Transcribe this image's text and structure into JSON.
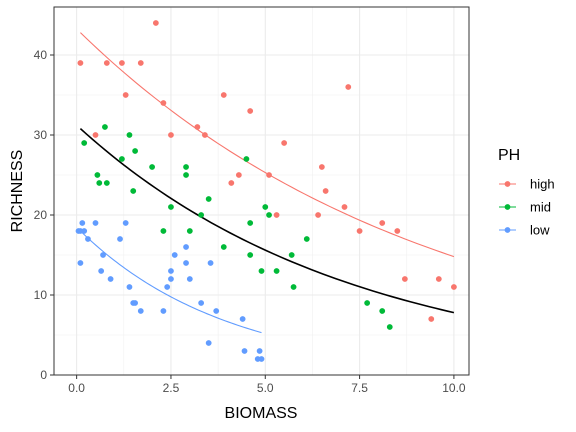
{
  "chart_data": {
    "type": "scatter",
    "xlabel": "BIOMASS",
    "ylabel": "RICHNESS",
    "xlim": [
      -0.6,
      10.4
    ],
    "ylim": [
      0,
      46
    ],
    "xticks": [
      0,
      2.5,
      5,
      7.5,
      10
    ],
    "xtick_labels": [
      "0.0",
      "2.5",
      "5.0",
      "7.5",
      "10.0"
    ],
    "yticks": [
      0,
      10,
      20,
      30,
      40
    ],
    "ytick_labels": [
      "0",
      "10",
      "20",
      "30",
      "40"
    ],
    "grid": true,
    "legend": {
      "title": "PH",
      "position": "right",
      "entries": [
        "high",
        "mid",
        "low"
      ]
    },
    "series": [
      {
        "name": "high",
        "color": "#F8766D",
        "points": [
          [
            0.1,
            39
          ],
          [
            0.5,
            30
          ],
          [
            0.8,
            39
          ],
          [
            1.2,
            39
          ],
          [
            1.3,
            35
          ],
          [
            1.7,
            39
          ],
          [
            2.1,
            44
          ],
          [
            2.3,
            34
          ],
          [
            2.5,
            30
          ],
          [
            3.2,
            31
          ],
          [
            3.4,
            30
          ],
          [
            3.9,
            35
          ],
          [
            4.1,
            24
          ],
          [
            4.3,
            25
          ],
          [
            4.6,
            33
          ],
          [
            5.1,
            25
          ],
          [
            5.3,
            20
          ],
          [
            5.5,
            29
          ],
          [
            6.4,
            20
          ],
          [
            6.5,
            26
          ],
          [
            6.6,
            23
          ],
          [
            7.1,
            21
          ],
          [
            7.2,
            36
          ],
          [
            7.5,
            18
          ],
          [
            8.1,
            19
          ],
          [
            8.5,
            18
          ],
          [
            8.7,
            12
          ],
          [
            9.4,
            7
          ],
          [
            9.6,
            12
          ],
          [
            10.0,
            11
          ]
        ],
        "fit": {
          "x_range": [
            0.1,
            10.0
          ],
          "y_start": 42.8,
          "y_end": 14.8
        }
      },
      {
        "name": "mid",
        "color": "#00BA38",
        "points": [
          [
            0.2,
            29
          ],
          [
            0.55,
            25
          ],
          [
            0.6,
            24
          ],
          [
            0.75,
            31
          ],
          [
            0.8,
            24
          ],
          [
            1.2,
            27
          ],
          [
            1.4,
            30
          ],
          [
            1.5,
            23
          ],
          [
            1.55,
            28
          ],
          [
            2.0,
            26
          ],
          [
            2.3,
            18
          ],
          [
            2.5,
            21
          ],
          [
            2.9,
            26
          ],
          [
            2.9,
            25
          ],
          [
            3.0,
            18
          ],
          [
            3.3,
            20
          ],
          [
            3.5,
            22
          ],
          [
            3.9,
            16
          ],
          [
            4.5,
            27
          ],
          [
            4.6,
            15
          ],
          [
            4.6,
            19
          ],
          [
            4.9,
            13
          ],
          [
            5.0,
            21
          ],
          [
            5.1,
            20
          ],
          [
            5.3,
            13
          ],
          [
            5.7,
            15
          ],
          [
            5.75,
            11
          ],
          [
            6.1,
            17
          ],
          [
            7.7,
            9
          ],
          [
            8.1,
            8
          ],
          [
            8.3,
            6
          ]
        ],
        "fit": null
      },
      {
        "name": "low",
        "color": "#619CFF",
        "points": [
          [
            0.05,
            18
          ],
          [
            0.1,
            14
          ],
          [
            0.1,
            18
          ],
          [
            0.15,
            19
          ],
          [
            0.2,
            18
          ],
          [
            0.3,
            17
          ],
          [
            0.5,
            19
          ],
          [
            0.65,
            13
          ],
          [
            0.7,
            15
          ],
          [
            0.9,
            12
          ],
          [
            1.15,
            17
          ],
          [
            1.3,
            19
          ],
          [
            1.4,
            11
          ],
          [
            1.5,
            9
          ],
          [
            1.55,
            9
          ],
          [
            1.7,
            8
          ],
          [
            2.3,
            8
          ],
          [
            2.4,
            11
          ],
          [
            2.5,
            12
          ],
          [
            2.5,
            13
          ],
          [
            2.6,
            15
          ],
          [
            2.9,
            14
          ],
          [
            2.9,
            16
          ],
          [
            3.0,
            12
          ],
          [
            3.3,
            9
          ],
          [
            3.5,
            4
          ],
          [
            3.55,
            14
          ],
          [
            3.7,
            8
          ],
          [
            4.4,
            7
          ],
          [
            4.45,
            3
          ],
          [
            4.8,
            2
          ],
          [
            4.85,
            3
          ],
          [
            4.9,
            2
          ]
        ],
        "fit": {
          "x_range": [
            0.1,
            4.9
          ],
          "y_start": 18.0,
          "y_end": 5.3
        }
      }
    ],
    "overall_fit": {
      "color": "#000000",
      "x_range": [
        0.1,
        10.0
      ],
      "y_start": 30.8,
      "y_end": 7.8
    }
  }
}
